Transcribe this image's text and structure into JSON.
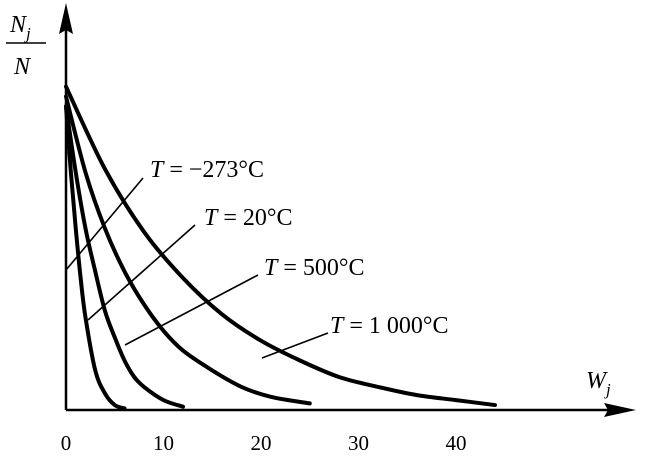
{
  "chart_data": {
    "type": "line",
    "title": "",
    "xlabel": "W",
    "xlabel_sub": "j",
    "ylabel_num": "N",
    "ylabel_num_sub": "j",
    "ylabel_den": "N",
    "x_ticks": [
      0,
      10,
      20,
      30,
      40
    ],
    "xlim": [
      0,
      58
    ],
    "ylim": [
      0,
      1
    ],
    "grid": false,
    "legend": "none",
    "series": [
      {
        "name": "T = −273°C",
        "label_var": "T",
        "label_rest": " = −273°C",
        "x": [
          0,
          0.5,
          1,
          1.5,
          2,
          3,
          4,
          5,
          6
        ],
        "y": [
          0.92,
          0.72,
          0.55,
          0.4,
          0.28,
          0.12,
          0.05,
          0.015,
          0.005
        ]
      },
      {
        "name": "T = 20°C",
        "label_var": "T",
        "label_rest": " = 20°C",
        "x": [
          0,
          1,
          2,
          3,
          4,
          5,
          6,
          7,
          8,
          10,
          12
        ],
        "y": [
          0.92,
          0.72,
          0.55,
          0.42,
          0.3,
          0.22,
          0.15,
          0.1,
          0.07,
          0.03,
          0.01
        ]
      },
      {
        "name": "T = 500°C",
        "label_var": "T",
        "label_rest": " = 500°C",
        "x": [
          0,
          2,
          4,
          6,
          8,
          10,
          12,
          15,
          18,
          21,
          25
        ],
        "y": [
          0.95,
          0.72,
          0.55,
          0.42,
          0.32,
          0.24,
          0.18,
          0.12,
          0.07,
          0.04,
          0.02
        ]
      },
      {
        "name": "T = 1 000°C",
        "label_var": "T",
        "label_rest": " = 1 000°C",
        "x": [
          0,
          4,
          8,
          12,
          16,
          20,
          24,
          28,
          32,
          36,
          40,
          44
        ],
        "y": [
          0.98,
          0.73,
          0.54,
          0.4,
          0.29,
          0.21,
          0.15,
          0.1,
          0.07,
          0.045,
          0.03,
          0.015
        ]
      }
    ]
  }
}
